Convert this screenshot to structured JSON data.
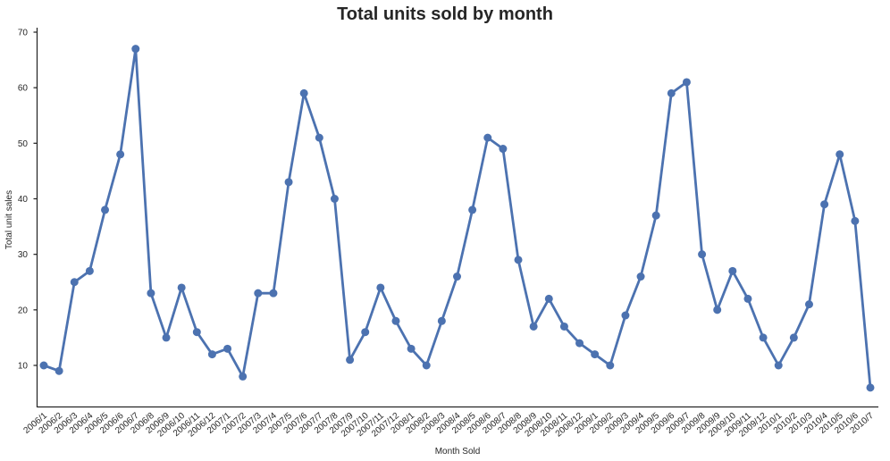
{
  "chart_data": {
    "type": "line",
    "title": "Total units sold by month",
    "xlabel": "Month Sold",
    "ylabel": "Total unit sales",
    "ylim": [
      2,
      71
    ],
    "yticks": [
      10,
      20,
      30,
      40,
      50,
      60,
      70
    ],
    "grid": false,
    "legend": "none",
    "color": "#4c72b0",
    "categories": [
      "2006/1",
      "2006/2",
      "2006/3",
      "2006/4",
      "2006/5",
      "2006/6",
      "2006/7",
      "2006/8",
      "2006/9",
      "2006/10",
      "2006/11",
      "2006/12",
      "2007/1",
      "2007/2",
      "2007/3",
      "2007/4",
      "2007/5",
      "2007/6",
      "2007/7",
      "2007/8",
      "2007/9",
      "2007/10",
      "2007/11",
      "2007/12",
      "2008/1",
      "2008/2",
      "2008/3",
      "2008/4",
      "2008/5",
      "2008/6",
      "2008/7",
      "2008/8",
      "2008/9",
      "2008/10",
      "2008/11",
      "2008/12",
      "2009/1",
      "2009/2",
      "2009/3",
      "2009/4",
      "2009/5",
      "2009/6",
      "2009/7",
      "2009/8",
      "2009/9",
      "2009/10",
      "2009/11",
      "2009/12",
      "2010/1",
      "2010/2",
      "2010/3",
      "2010/4",
      "2010/5",
      "2010/6",
      "2010/7"
    ],
    "values": [
      10,
      9,
      25,
      27,
      38,
      48,
      67,
      23,
      15,
      24,
      16,
      12,
      13,
      8,
      23,
      23,
      43,
      59,
      51,
      40,
      11,
      16,
      24,
      18,
      13,
      10,
      18,
      26,
      38,
      51,
      49,
      29,
      17,
      22,
      17,
      14,
      12,
      10,
      19,
      26,
      37,
      59,
      61,
      30,
      20,
      27,
      22,
      15,
      10,
      15,
      21,
      39,
      48,
      36,
      6
    ]
  }
}
